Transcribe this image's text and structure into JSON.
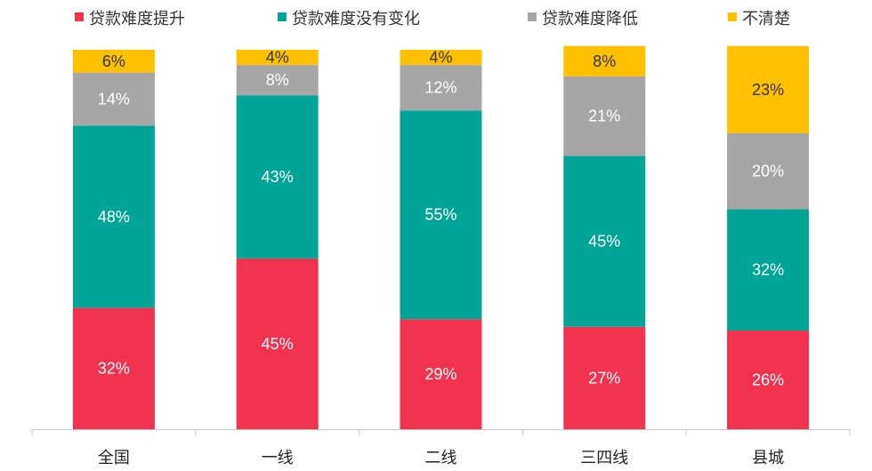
{
  "chart_data": {
    "type": "bar",
    "stacked": true,
    "percent": true,
    "categories": [
      "全国",
      "一线",
      "二线",
      "三四线",
      "县城"
    ],
    "series": [
      {
        "name": "贷款难度提升",
        "color": "#f2334f",
        "values": [
          32,
          45,
          29,
          27,
          26
        ]
      },
      {
        "name": "贷款难度没有变化",
        "color": "#00a597",
        "values": [
          48,
          43,
          55,
          45,
          32
        ]
      },
      {
        "name": "贷款难度降低",
        "color": "#a6a6a6",
        "values": [
          14,
          8,
          12,
          21,
          20
        ]
      },
      {
        "name": "不清楚",
        "color": "#ffc000",
        "values": [
          6,
          4,
          4,
          8,
          23
        ]
      }
    ],
    "ylim": [
      0,
      100
    ],
    "grid": false,
    "legend_position": "top"
  }
}
